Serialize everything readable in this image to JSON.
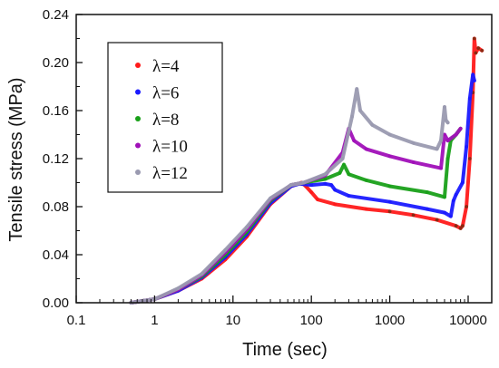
{
  "chart_data": {
    "type": "line",
    "xlabel": "Time (sec)",
    "ylabel": "Tensile stress (MPa)",
    "xscale": "log",
    "xlim": [
      0.1,
      20000
    ],
    "ylim": [
      0,
      0.24
    ],
    "x_ticks": [
      {
        "value": 0.1,
        "label": "0.1"
      },
      {
        "value": 1,
        "label": "1"
      },
      {
        "value": 10,
        "label": "10"
      },
      {
        "value": 100,
        "label": "100"
      },
      {
        "value": 1000,
        "label": "1000"
      },
      {
        "value": 10000,
        "label": "10000"
      }
    ],
    "y_ticks": [
      {
        "value": 0.0,
        "label": "0.00"
      },
      {
        "value": 0.04,
        "label": "0.04"
      },
      {
        "value": 0.08,
        "label": "0.08"
      },
      {
        "value": 0.12,
        "label": "0.12"
      },
      {
        "value": 0.16,
        "label": "0.16"
      },
      {
        "value": 0.2,
        "label": "0.20"
      },
      {
        "value": 0.24,
        "label": "0.24"
      }
    ],
    "grid": false,
    "legend_position": "top-left",
    "series": [
      {
        "name": "λ=4",
        "color": "#ff1a1a",
        "tail_color": "#8b2a12",
        "points": [
          [
            0.5,
            0
          ],
          [
            1,
            0.003
          ],
          [
            2,
            0.01
          ],
          [
            4,
            0.02
          ],
          [
            8,
            0.036
          ],
          [
            15,
            0.055
          ],
          [
            30,
            0.082
          ],
          [
            55,
            0.097
          ],
          [
            75,
            0.1
          ],
          [
            85,
            0.097
          ],
          [
            100,
            0.092
          ],
          [
            120,
            0.086
          ],
          [
            200,
            0.082
          ],
          [
            500,
            0.078
          ],
          [
            1000,
            0.076
          ],
          [
            2000,
            0.073
          ],
          [
            4000,
            0.069
          ],
          [
            7000,
            0.064
          ],
          [
            8000,
            0.062
          ],
          [
            8500,
            0.064
          ],
          [
            9500,
            0.08
          ],
          [
            10500,
            0.12
          ],
          [
            11500,
            0.175
          ],
          [
            12000,
            0.22
          ],
          [
            12500,
            0.208
          ],
          [
            13500,
            0.212
          ],
          [
            15000,
            0.21
          ]
        ]
      },
      {
        "name": "λ=6",
        "color": "#1a1aff",
        "tail_color": "#1a1aff",
        "points": [
          [
            0.5,
            0
          ],
          [
            1,
            0.003
          ],
          [
            2,
            0.01
          ],
          [
            4,
            0.021
          ],
          [
            8,
            0.038
          ],
          [
            15,
            0.057
          ],
          [
            30,
            0.083
          ],
          [
            55,
            0.097
          ],
          [
            70,
            0.099
          ],
          [
            100,
            0.098
          ],
          [
            150,
            0.099
          ],
          [
            180,
            0.098
          ],
          [
            200,
            0.094
          ],
          [
            300,
            0.089
          ],
          [
            1000,
            0.084
          ],
          [
            3000,
            0.078
          ],
          [
            5000,
            0.075
          ],
          [
            6000,
            0.072
          ],
          [
            6500,
            0.085
          ],
          [
            7000,
            0.09
          ],
          [
            8500,
            0.1
          ],
          [
            9500,
            0.13
          ],
          [
            10500,
            0.17
          ],
          [
            11500,
            0.19
          ],
          [
            12000,
            0.185
          ]
        ]
      },
      {
        "name": "λ=8",
        "color": "#19a019",
        "tail_color": "#19a019",
        "points": [
          [
            0.5,
            0
          ],
          [
            1,
            0.003
          ],
          [
            2,
            0.011
          ],
          [
            4,
            0.022
          ],
          [
            8,
            0.04
          ],
          [
            15,
            0.059
          ],
          [
            30,
            0.085
          ],
          [
            55,
            0.098
          ],
          [
            80,
            0.1
          ],
          [
            150,
            0.103
          ],
          [
            230,
            0.108
          ],
          [
            260,
            0.115
          ],
          [
            300,
            0.107
          ],
          [
            500,
            0.102
          ],
          [
            1000,
            0.097
          ],
          [
            3000,
            0.092
          ],
          [
            5000,
            0.088
          ],
          [
            5500,
            0.12
          ],
          [
            6000,
            0.135
          ],
          [
            7000,
            0.14
          ],
          [
            8000,
            0.145
          ]
        ]
      },
      {
        "name": "λ=10",
        "color": "#a010b8",
        "tail_color": "#a010b8",
        "points": [
          [
            0.5,
            0
          ],
          [
            1,
            0.003
          ],
          [
            2,
            0.011
          ],
          [
            4,
            0.023
          ],
          [
            8,
            0.042
          ],
          [
            15,
            0.061
          ],
          [
            30,
            0.086
          ],
          [
            55,
            0.098
          ],
          [
            80,
            0.1
          ],
          [
            150,
            0.106
          ],
          [
            250,
            0.125
          ],
          [
            300,
            0.145
          ],
          [
            350,
            0.135
          ],
          [
            500,
            0.128
          ],
          [
            1000,
            0.122
          ],
          [
            2000,
            0.117
          ],
          [
            4500,
            0.112
          ],
          [
            5000,
            0.14
          ],
          [
            5500,
            0.135
          ],
          [
            7000,
            0.14
          ],
          [
            8000,
            0.145
          ]
        ]
      },
      {
        "name": "λ=12",
        "color": "#9a9ab0",
        "tail_color": "#9a9ab0",
        "points": [
          [
            0.5,
            0
          ],
          [
            1,
            0.003
          ],
          [
            2,
            0.012
          ],
          [
            4,
            0.024
          ],
          [
            8,
            0.044
          ],
          [
            15,
            0.063
          ],
          [
            30,
            0.087
          ],
          [
            55,
            0.098
          ],
          [
            80,
            0.1
          ],
          [
            150,
            0.107
          ],
          [
            250,
            0.12
          ],
          [
            330,
            0.155
          ],
          [
            380,
            0.178
          ],
          [
            420,
            0.16
          ],
          [
            600,
            0.148
          ],
          [
            1000,
            0.14
          ],
          [
            2000,
            0.133
          ],
          [
            4000,
            0.128
          ],
          [
            4500,
            0.135
          ],
          [
            5000,
            0.163
          ],
          [
            5200,
            0.152
          ],
          [
            5500,
            0.15
          ]
        ]
      }
    ]
  }
}
